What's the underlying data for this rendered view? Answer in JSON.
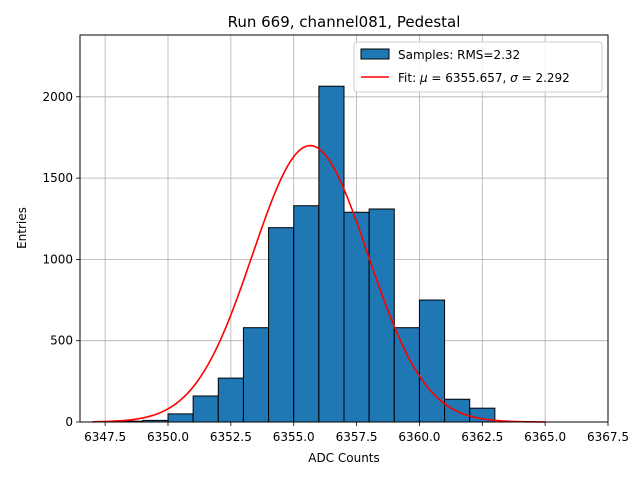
{
  "chart_data": {
    "type": "bar",
    "title": "Run 669, channel081, Pedestal",
    "xlabel": "ADC Counts",
    "ylabel": "Entries",
    "xlim": [
      6346.5,
      6367.5
    ],
    "ylim": [
      0,
      2380
    ],
    "grid": true,
    "legend_position": "top-right",
    "x_ticks": [
      "6347.5",
      "6350.0",
      "6352.5",
      "6355.0",
      "6357.5",
      "6360.0",
      "6362.5",
      "6365.0",
      "6367.5"
    ],
    "y_ticks": [
      "0",
      "500",
      "1000",
      "1500",
      "2000"
    ],
    "bin_width": 1.0,
    "bin_centers": [
      6348.5,
      6349.5,
      6350.5,
      6351.5,
      6352.5,
      6353.5,
      6354.5,
      6355.5,
      6356.5,
      6357.5,
      6358.5,
      6359.5,
      6360.5,
      6361.5,
      6362.5
    ],
    "values": [
      5,
      10,
      50,
      160,
      270,
      580,
      1195,
      1330,
      2065,
      1290,
      1310,
      580,
      750,
      140,
      85
    ],
    "series": [
      {
        "name": "Samples: RMS=2.32",
        "kind": "histogram",
        "color": "#1f77b4",
        "edgecolor": "#000000"
      },
      {
        "name_parts": [
          "Fit: ",
          "μ",
          " = 6355.657, ",
          "σ",
          " = 2.292"
        ],
        "kind": "line",
        "color": "#ff0000",
        "mu": 6355.657,
        "sigma": 2.292,
        "peak": 1700,
        "x_range": [
          6347.0,
          6365.0
        ]
      }
    ]
  }
}
